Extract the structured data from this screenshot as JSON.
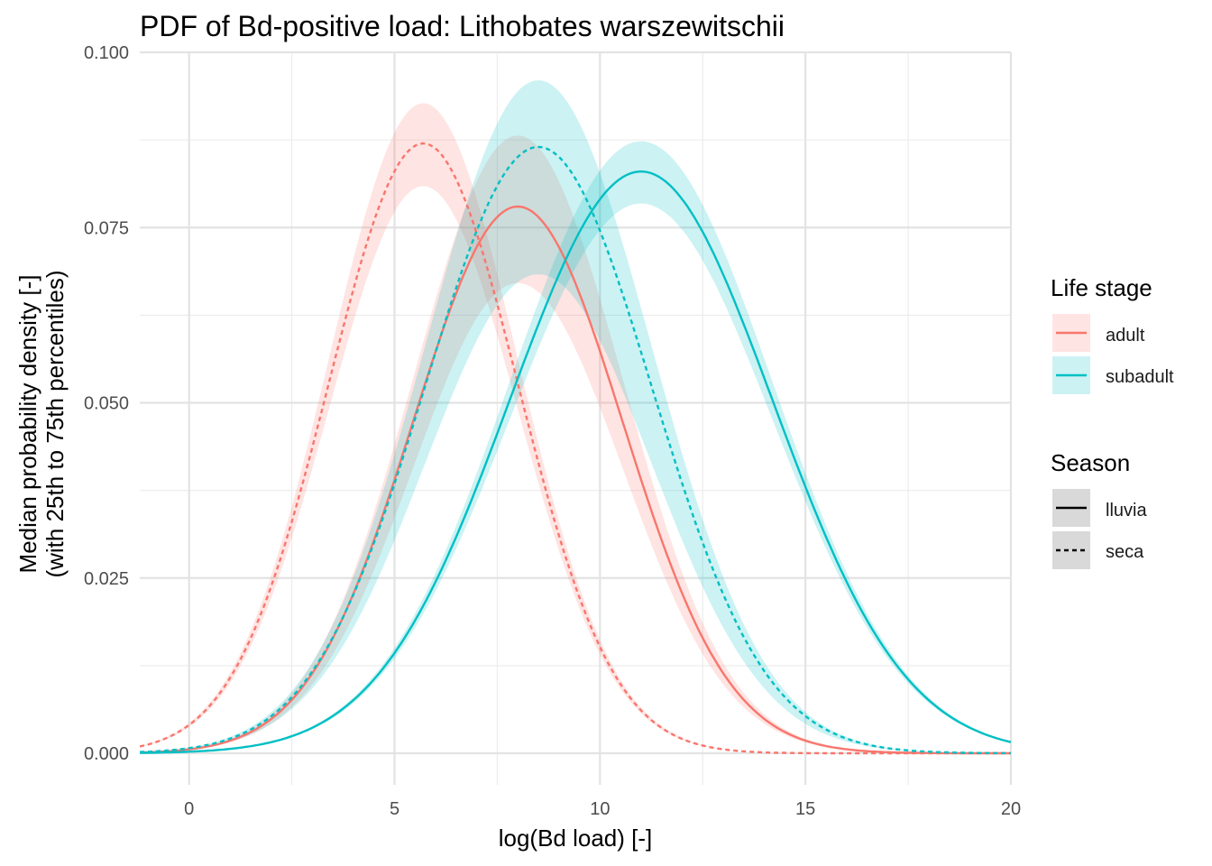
{
  "chart_data": {
    "type": "line",
    "title": "PDF of Bd-positive load: Lithobates warszewitschii",
    "xlabel": "log(Bd load) [-]",
    "ylabel": [
      "Median probability density [-]",
      "(with 25th to 75th percentiles)"
    ],
    "xlim": [
      -1.2,
      20
    ],
    "ylim": [
      -0.0045,
      0.1
    ],
    "x_ticks": [
      0,
      5,
      10,
      15,
      20
    ],
    "x_tick_labels": [
      "0",
      "5",
      "10",
      "15",
      "20"
    ],
    "y_ticks": [
      0,
      0.025,
      0.05,
      0.075,
      0.1
    ],
    "y_tick_labels": [
      "0.000",
      "0.025",
      "0.050",
      "0.075",
      "0.100"
    ],
    "grid": true,
    "legend_placement": "right",
    "legend": {
      "life_stage": {
        "title": "Life stage",
        "entries": [
          {
            "label": "adult",
            "color": "#F8766D"
          },
          {
            "label": "subadult",
            "color": "#00BFC4"
          }
        ]
      },
      "season": {
        "title": "Season",
        "entries": [
          {
            "label": "lluvia",
            "dash": "solid"
          },
          {
            "label": "seca",
            "dash": "dashed"
          }
        ]
      }
    },
    "series": [
      {
        "life_stage": "adult",
        "season": "lluvia",
        "color": "#F8766D",
        "dash": "solid",
        "mean": 8.0,
        "sd": 2.55,
        "peak": 0.078,
        "band_low_factor": 0.86,
        "band_high_factor": 1.13
      },
      {
        "life_stage": "adult",
        "season": "seca",
        "color": "#F8766D",
        "dash": "dashed",
        "mean": 5.7,
        "sd": 2.3,
        "peak": 0.087,
        "band_low_factor": 0.93,
        "band_high_factor": 1.066
      },
      {
        "life_stage": "subadult",
        "season": "lluvia",
        "color": "#00BFC4",
        "dash": "solid",
        "mean": 11.0,
        "sd": 3.2,
        "peak": 0.083,
        "band_low_factor": 0.945,
        "band_high_factor": 1.052
      },
      {
        "life_stage": "subadult",
        "season": "seca",
        "color": "#00BFC4",
        "dash": "dashed",
        "mean": 8.5,
        "sd": 2.75,
        "peak": 0.0865,
        "band_low_factor": 0.79,
        "band_high_factor": 1.11
      }
    ]
  }
}
